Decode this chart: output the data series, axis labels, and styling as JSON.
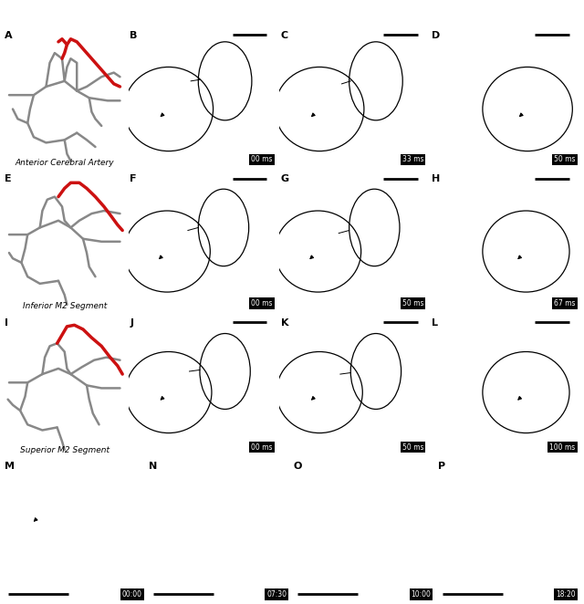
{
  "figure_size": [
    6.4,
    6.62
  ],
  "dpi": 100,
  "bg_color": "#ffffff",
  "panel_labels_row1": [
    "A",
    "B",
    "C",
    "D"
  ],
  "panel_labels_row2": [
    "E",
    "F",
    "G",
    "H"
  ],
  "panel_labels_row3": [
    "I",
    "J",
    "K",
    "L"
  ],
  "panel_labels_row4": [
    "M",
    "N",
    "O",
    "P"
  ],
  "row_labels": [
    "Anterior Cerebral Artery",
    "Inferior M2 Segment",
    "Superior M2 Segment"
  ],
  "timestamps_row1": [
    "00 ms",
    "33 ms",
    "50 ms"
  ],
  "timestamps_row2": [
    "00 ms",
    "50 ms",
    "67 ms"
  ],
  "timestamps_row3": [
    "00 ms",
    "50 ms",
    "100 ms"
  ],
  "timestamps_row4": [
    "00:00",
    "07:30",
    "10:00",
    "18:20"
  ],
  "label_fontsize": 8,
  "timestamp_fontsize": 5.5,
  "row_label_fontsize": 6.5,
  "photo_bg": "#d8cfc7",
  "photo_bg_row4": "#e8ddd5",
  "diag_bg": "#ffffff",
  "timestamp_bg": "#000000",
  "timestamp_fg": "#ffffff",
  "scalebar_color": "#000000",
  "vessel_gray": "#888888",
  "vessel_red": "#cc1111"
}
